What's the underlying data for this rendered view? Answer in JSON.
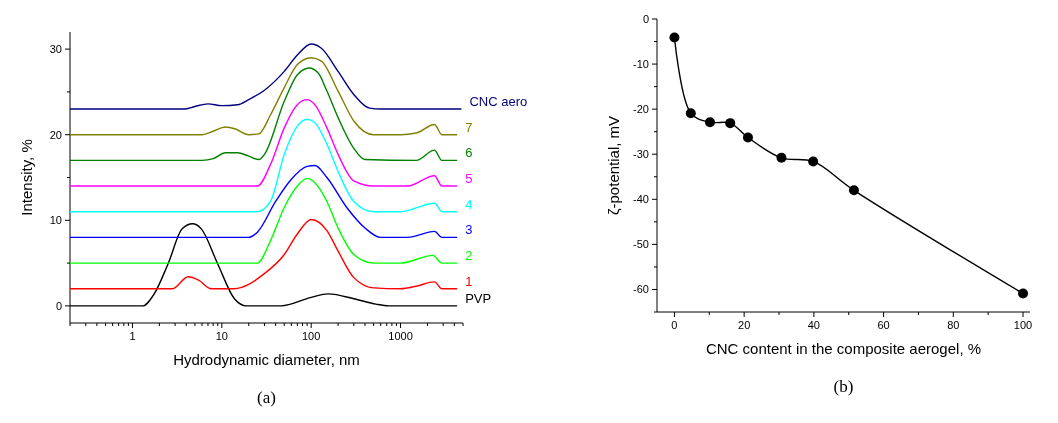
{
  "chart_data": [
    {
      "type": "line",
      "title": "(a)",
      "xlabel": "Hydrodynamic diameter, nm",
      "ylabel": "Intensity, %",
      "log": "x",
      "marker": "none",
      "line_style": "solid",
      "grid": false,
      "xlim": [
        0.2,
        5000
      ],
      "ylim": [
        -2,
        32
      ],
      "xticks": [
        {
          "value": 0.2,
          "label": null
        },
        {
          "value": 0.3,
          "label": null
        },
        {
          "value": 0.4,
          "label": null
        },
        {
          "value": 0.5,
          "label": null
        },
        {
          "value": 0.6,
          "label": null
        },
        {
          "value": 0.7,
          "label": null
        },
        {
          "value": 0.8,
          "label": null
        },
        {
          "value": 0.9,
          "label": null
        },
        1,
        {
          "value": 2,
          "label": null
        },
        {
          "value": 3,
          "label": null
        },
        {
          "value": 4,
          "label": null
        },
        {
          "value": 5,
          "label": null
        },
        {
          "value": 6,
          "label": null
        },
        {
          "value": 7,
          "label": null
        },
        {
          "value": 8,
          "label": null
        },
        {
          "value": 9,
          "label": null
        },
        10,
        {
          "value": 20,
          "label": null
        },
        {
          "value": 30,
          "label": null
        },
        {
          "value": 40,
          "label": null
        },
        {
          "value": 50,
          "label": null
        },
        {
          "value": 60,
          "label": null
        },
        {
          "value": 70,
          "label": null
        },
        {
          "value": 80,
          "label": null
        },
        {
          "value": 90,
          "label": null
        },
        100,
        {
          "value": 200,
          "label": null
        },
        {
          "value": 300,
          "label": null
        },
        {
          "value": 400,
          "label": null
        },
        {
          "value": 500,
          "label": null
        },
        {
          "value": 600,
          "label": null
        },
        {
          "value": 700,
          "label": null
        },
        {
          "value": 800,
          "label": null
        },
        {
          "value": 900,
          "label": null
        },
        1000,
        {
          "value": 2000,
          "label": null
        },
        {
          "value": 3000,
          "label": null
        },
        {
          "value": 4000,
          "label": null
        },
        {
          "value": 5000,
          "label": null
        }
      ],
      "yticks": [
        0,
        {
          "value": 5,
          "label": null
        },
        10,
        {
          "value": 15,
          "label": null
        },
        20,
        {
          "value": 25,
          "label": null
        },
        30
      ],
      "series": [
        {
          "name": "PVP",
          "color": "#000000",
          "x": [
            0.2,
            1.3,
            1.75,
            2.5,
            3.6,
            4.7,
            5.9,
            9,
            13.9,
            18.8,
            46,
            100,
            155,
            310,
            530,
            740,
            4300
          ],
          "values": [
            0,
            0,
            1.4,
            4.9,
            9.0,
            9.6,
            9.0,
            4.9,
            0.8,
            0,
            0,
            1.0,
            1.4,
            0.8,
            0.2,
            0,
            0
          ]
        },
        {
          "name": "1",
          "color": "#ff0000",
          "x": [
            0.2,
            2.8,
            4.2,
            5.5,
            7.6,
            13.8,
            20,
            27.7,
            50,
            70,
            100,
            150,
            200,
            300,
            500,
            1000,
            1500,
            2400,
            2900,
            4300
          ],
          "values": [
            2,
            2,
            3.4,
            3.0,
            2.0,
            2.0,
            2.5,
            3.5,
            6,
            8.4,
            10.1,
            8.8,
            6.4,
            3.3,
            2.1,
            2.0,
            2.3,
            2.8,
            2.0,
            2.0
          ]
        },
        {
          "name": "2",
          "color": "#00ff00",
          "x": [
            0.2,
            25,
            35,
            50,
            70,
            90,
            110,
            150,
            200,
            300,
            500,
            1000,
            2300,
            2900,
            4300
          ],
          "values": [
            5,
            5,
            7.6,
            11.5,
            14.0,
            14.9,
            14.4,
            12.2,
            9.1,
            6.0,
            5.0,
            5.0,
            5.9,
            5.0,
            5.0
          ]
        },
        {
          "name": "3",
          "color": "#0000ff",
          "x": [
            0.2,
            20,
            25,
            40,
            60,
            90,
            110,
            150,
            250,
            400,
            600,
            1200,
            2400,
            2900,
            4300
          ],
          "values": [
            8,
            8,
            8.6,
            12.2,
            14.8,
            16.3,
            16.4,
            15.0,
            11.5,
            9.1,
            8.0,
            8.0,
            8.7,
            8.0,
            8.0
          ]
        },
        {
          "name": "4",
          "color": "#00ffff",
          "x": [
            0.2,
            25,
            35,
            50,
            70,
            90,
            110,
            150,
            200,
            300,
            500,
            1000,
            2400,
            2900,
            4300
          ],
          "values": [
            11,
            11,
            12.2,
            17.7,
            21.0,
            21.8,
            21.4,
            18.9,
            15.7,
            12.2,
            11.0,
            11.0,
            12.0,
            11.0,
            11.0
          ]
        },
        {
          "name": "5",
          "color": "#ff00ff",
          "x": [
            0.2,
            25,
            35,
            50,
            70,
            90,
            110,
            150,
            200,
            300,
            500,
            1200,
            2400,
            2900,
            4300
          ],
          "values": [
            14,
            14,
            16.5,
            20.8,
            23.5,
            24.1,
            23.5,
            20.8,
            17.7,
            14.6,
            14.0,
            14.0,
            15.2,
            14.0,
            14.0
          ]
        },
        {
          "name": "6",
          "color": "#008000",
          "x": [
            0.2,
            6,
            8,
            11,
            15,
            20,
            26,
            30,
            50,
            70,
            95,
            120,
            150,
            200,
            300,
            400,
            1500,
            2400,
            2900,
            4300
          ],
          "values": [
            17,
            17,
            17.2,
            17.9,
            17.9,
            17.5,
            17.1,
            17.7,
            23.9,
            27.0,
            27.8,
            27.2,
            25.1,
            22.0,
            18.4,
            17.1,
            17.0,
            18.2,
            17.0,
            17.0
          ]
        },
        {
          "name": "7",
          "color": "#808000",
          "x": [
            0.2,
            6,
            8,
            11,
            14,
            20,
            26,
            35,
            50,
            70,
            100,
            130,
            200,
            300,
            500,
            1000,
            1500,
            2400,
            2900,
            4300
          ],
          "values": [
            20,
            20,
            20.4,
            20.9,
            20.7,
            20.0,
            20.1,
            22.3,
            25.5,
            28.2,
            29.0,
            28.6,
            25.1,
            21.6,
            20.0,
            20.0,
            20.2,
            21.2,
            20.0,
            20.0
          ]
        },
        {
          "name": "CNC aero",
          "color": "#000080",
          "x": [
            0.2,
            3.8,
            5,
            7,
            10,
            15,
            20,
            30,
            50,
            70,
            100,
            130,
            200,
            300,
            450,
            600,
            4800
          ],
          "values": [
            23,
            23,
            23.3,
            23.6,
            23.4,
            23.5,
            24.1,
            25.2,
            27.4,
            29.3,
            30.6,
            30.1,
            27.4,
            24.7,
            23.1,
            23.0,
            23.0
          ]
        }
      ]
    },
    {
      "type": "line",
      "title": "(b)",
      "xlabel": "CNC content in the composite aerogel, %",
      "ylabel": "ζ-potential, mV",
      "marker": "circle",
      "line_style": "solid",
      "grid": false,
      "xlim": [
        -5,
        102
      ],
      "ylim": [
        -65,
        0
      ],
      "xticks": [
        0,
        {
          "value": 10,
          "label": null
        },
        20,
        {
          "value": 30,
          "label": null
        },
        40,
        {
          "value": 50,
          "label": null
        },
        60,
        {
          "value": 70,
          "label": null
        },
        80,
        {
          "value": 90,
          "label": null
        },
        100
      ],
      "yticks": [
        {
          "value": -65,
          "label": null
        },
        -60,
        {
          "value": -55,
          "label": null
        },
        -50,
        {
          "value": -45,
          "label": null
        },
        -40,
        {
          "value": -35,
          "label": null
        },
        -30,
        {
          "value": -25,
          "label": null
        },
        -20,
        {
          "value": -15,
          "label": null
        },
        -10,
        {
          "value": -5,
          "label": null
        },
        0
      ],
      "series": [
        {
          "color": "#000000",
          "x": [
            0,
            4.7,
            10.2,
            16.0,
            21.1,
            30.7,
            39.8,
            51.5,
            100
          ],
          "values": [
            -4.1,
            -20.9,
            -22.9,
            -23.1,
            -26.3,
            -30.8,
            -31.6,
            -38.0,
            -60.9
          ]
        }
      ]
    }
  ]
}
